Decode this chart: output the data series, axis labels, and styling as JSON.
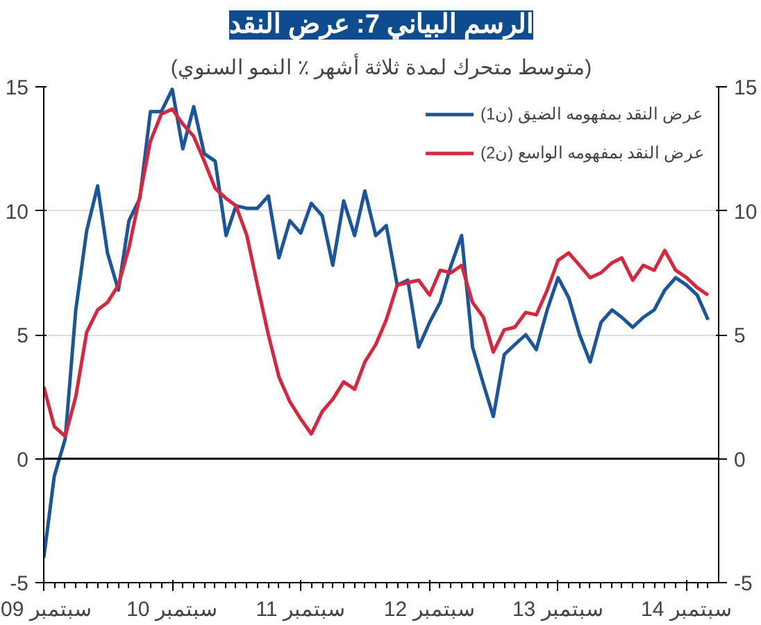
{
  "chart_data": {
    "type": "line",
    "title": "الرسم البياني 7: عرض النقد",
    "subtitle": "(متوسط متحرك لمدة ثلاثة أشهر ٪ النمو السنوي)",
    "x": [
      "2009-09",
      "2009-10",
      "2009-11",
      "2009-12",
      "2010-01",
      "2010-02",
      "2010-03",
      "2010-04",
      "2010-05",
      "2010-06",
      "2010-07",
      "2010-08",
      "2010-09",
      "2010-10",
      "2010-11",
      "2010-12",
      "2011-01",
      "2011-02",
      "2011-03",
      "2011-04",
      "2011-05",
      "2011-06",
      "2011-07",
      "2011-08",
      "2011-09",
      "2011-10",
      "2011-11",
      "2011-12",
      "2012-01",
      "2012-02",
      "2012-03",
      "2012-04",
      "2012-05",
      "2012-06",
      "2012-07",
      "2012-08",
      "2012-09",
      "2012-10",
      "2012-11",
      "2012-12",
      "2013-01",
      "2013-02",
      "2013-03",
      "2013-04",
      "2013-05",
      "2013-06",
      "2013-07",
      "2013-08",
      "2013-09",
      "2013-10",
      "2013-11",
      "2013-12",
      "2014-01",
      "2014-02",
      "2014-03",
      "2014-04",
      "2014-05",
      "2014-06",
      "2014-07",
      "2014-08",
      "2014-09",
      "2014-10",
      "2014-11"
    ],
    "series": [
      {
        "name": "عرض النقد بمفهومه الضيق (ن1)",
        "color": "#1a5699",
        "values": [
          -4.0,
          -0.7,
          0.8,
          6.0,
          9.2,
          11.0,
          8.3,
          6.8,
          9.6,
          10.5,
          14.0,
          14.0,
          14.9,
          12.5,
          14.2,
          12.3,
          12.0,
          9.0,
          10.2,
          10.1,
          10.1,
          10.6,
          8.1,
          9.6,
          9.1,
          10.3,
          9.8,
          7.8,
          10.4,
          9.0,
          10.8,
          9.0,
          9.4,
          7.0,
          7.2,
          4.5,
          5.5,
          6.3,
          7.8,
          9.0,
          4.5,
          3.0,
          1.7,
          4.2,
          4.6,
          5.0,
          4.4,
          6.0,
          7.3,
          6.5,
          5.0,
          3.9,
          5.5,
          6.0,
          5.7,
          5.3,
          5.7,
          6.0,
          6.8,
          7.3,
          7.0,
          6.6,
          5.6
        ]
      },
      {
        "name": "عرض النقد بمفهومه الواسع (ن2)",
        "color": "#d7263d",
        "values": [
          2.9,
          1.3,
          0.9,
          2.5,
          5.1,
          6.0,
          6.3,
          7.0,
          8.5,
          10.6,
          12.8,
          13.9,
          14.1,
          13.5,
          13.0,
          12.0,
          10.9,
          10.5,
          10.2,
          9.0,
          7.0,
          5.0,
          3.3,
          2.3,
          1.6,
          1.0,
          1.9,
          2.4,
          3.1,
          2.8,
          3.9,
          4.6,
          5.6,
          7.0,
          7.1,
          7.2,
          6.6,
          7.6,
          7.5,
          7.8,
          6.3,
          5.7,
          4.3,
          5.2,
          5.3,
          5.9,
          5.8,
          6.8,
          8.0,
          8.3,
          7.8,
          7.3,
          7.5,
          7.9,
          8.1,
          7.2,
          7.8,
          7.6,
          8.4,
          7.6,
          7.3,
          6.9,
          6.6
        ]
      }
    ],
    "xlim": [
      "2009-09",
      "2014-12"
    ],
    "xticks": [
      {
        "value": "2009-09",
        "label": "سبتمبر 09"
      },
      {
        "value": "2010-09",
        "label": "سبتمبر 10"
      },
      {
        "value": "2011-09",
        "label": "سبتمبر 11"
      },
      {
        "value": "2012-09",
        "label": "سبتمبر 12"
      },
      {
        "value": "2013-09",
        "label": "سبتمبر 13"
      },
      {
        "value": "2014-09",
        "label": "سبتمبر 14"
      }
    ],
    "ylim": [
      -5,
      15
    ],
    "yticks": [
      -5,
      0,
      5,
      10,
      15
    ],
    "y2lim": [
      -5,
      15
    ],
    "y2ticks": [
      -5,
      0,
      5,
      10,
      15
    ],
    "ref_lines": [
      {
        "axis": "y",
        "value": 0,
        "color": "#000000"
      }
    ],
    "grid": "y",
    "legend": "top right",
    "marker": "none",
    "line_style": "solid"
  }
}
